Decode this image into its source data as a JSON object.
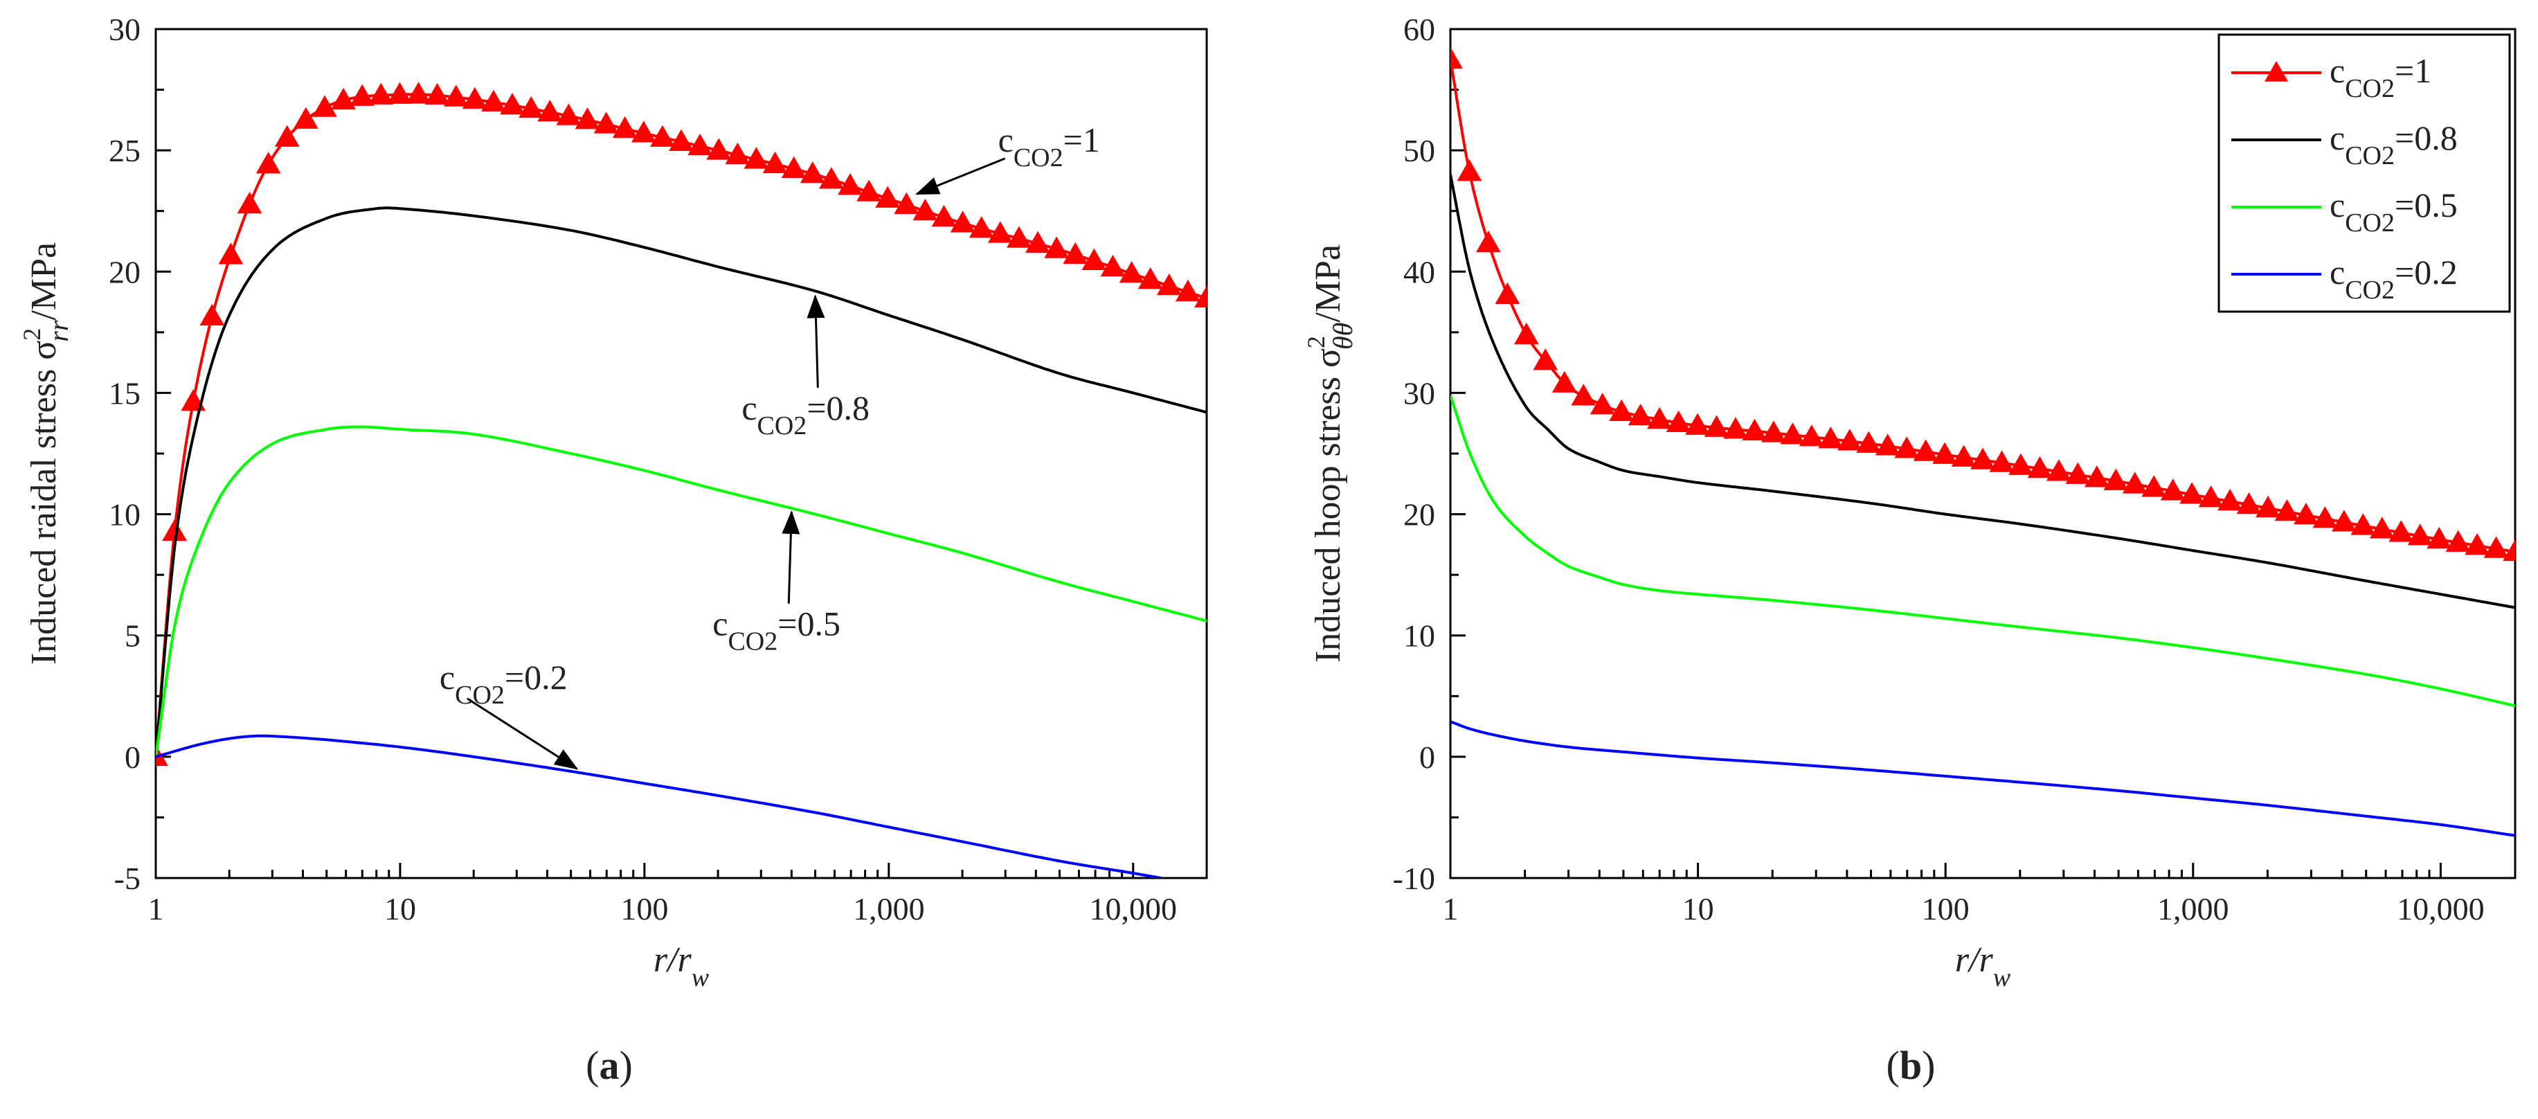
{
  "chart_data": [
    {
      "panel": "(a)",
      "panel_letter": "a",
      "type": "line",
      "title": "",
      "xlabel": "r/r_w",
      "ylabel": "Induced raidal stress σ²_rr/MPa",
      "xscale": "log",
      "xlim": [
        1,
        20000
      ],
      "ylim": [
        -5,
        30
      ],
      "xticks": [
        1,
        10,
        100,
        1000,
        10000
      ],
      "xtick_labels": [
        "1",
        "10",
        "100",
        "1,000",
        "10,000"
      ],
      "yticks": [
        -5,
        0,
        5,
        10,
        15,
        20,
        25,
        30
      ],
      "ytick_labels": [
        "-5",
        "0",
        "5",
        "10",
        "15",
        "20",
        "25",
        "30"
      ],
      "grid": false,
      "series": [
        {
          "name": "cCO2=1",
          "color": "#ff0000",
          "marker": "triangle",
          "x": [
            1,
            1.2,
            1.5,
            2,
            3,
            5,
            10,
            20,
            50,
            100,
            200,
            500,
            1000,
            2000,
            5000,
            10000,
            20000
          ],
          "y": [
            0,
            9.5,
            15.8,
            20.5,
            24.7,
            26.8,
            27.3,
            27.1,
            26.4,
            25.7,
            25.0,
            24.0,
            23.0,
            22.0,
            20.9,
            19.9,
            18.9
          ]
        },
        {
          "name": "cCO2=0.8",
          "color": "#000000",
          "marker": "none",
          "x": [
            1,
            1.2,
            1.5,
            2,
            3,
            5,
            8,
            10,
            20,
            50,
            100,
            200,
            500,
            1000,
            2000,
            5000,
            10000,
            20000
          ],
          "y": [
            0,
            8.8,
            14.2,
            18.2,
            20.9,
            22.2,
            22.6,
            22.6,
            22.3,
            21.7,
            21.0,
            20.2,
            19.2,
            18.2,
            17.2,
            15.8,
            15.0,
            14.2
          ]
        },
        {
          "name": "cCO2=0.5",
          "color": "#00ff00",
          "marker": "none",
          "x": [
            1,
            1.2,
            1.5,
            2,
            3,
            5,
            7,
            10,
            20,
            50,
            100,
            200,
            500,
            1000,
            2000,
            5000,
            10000,
            20000
          ],
          "y": [
            0,
            5.5,
            8.8,
            11.3,
            12.9,
            13.5,
            13.6,
            13.5,
            13.3,
            12.5,
            11.8,
            11.0,
            10.0,
            9.2,
            8.4,
            7.2,
            6.4,
            5.6
          ]
        },
        {
          "name": "cCO2=0.2",
          "color": "#0000ff",
          "marker": "none",
          "x": [
            1,
            1.5,
            2,
            2.5,
            3,
            5,
            10,
            20,
            50,
            100,
            200,
            500,
            1000,
            2000,
            5000,
            10000,
            13000
          ],
          "y": [
            0,
            0.5,
            0.75,
            0.85,
            0.85,
            0.7,
            0.4,
            0.0,
            -0.6,
            -1.1,
            -1.6,
            -2.3,
            -2.9,
            -3.5,
            -4.3,
            -4.8,
            -5.0
          ]
        }
      ],
      "annotations": [
        {
          "label_sub": "CO2",
          "label_val": "=1",
          "text_x": 2800,
          "text_y": 24.95,
          "arrow_to_x": 1300,
          "arrow_to_y": 23.2
        },
        {
          "label_sub": "CO2",
          "label_val": "=0.8",
          "text_x": 250,
          "text_y": 13.9,
          "arrow_to_x": 500,
          "arrow_to_y": 19.0
        },
        {
          "label_sub": "CO2",
          "label_val": "=0.5",
          "text_x": 190,
          "text_y": 5.0,
          "arrow_to_x": 400,
          "arrow_to_y": 10.1
        },
        {
          "label_sub": "CO2",
          "label_val": "=0.2",
          "text_x": 14.5,
          "text_y": 2.8,
          "arrow_to_x": 53,
          "arrow_to_y": -0.5
        }
      ],
      "legend": null
    },
    {
      "panel": "(b)",
      "panel_letter": "b",
      "type": "line",
      "title": "",
      "xlabel": "r/r_w",
      "ylabel": "Induced hoop stress σ²_θθ/MPa",
      "xscale": "log",
      "xlim": [
        1,
        20000
      ],
      "ylim": [
        -10,
        60
      ],
      "xticks": [
        1,
        10,
        100,
        1000,
        10000
      ],
      "xtick_labels": [
        "1",
        "10",
        "100",
        "1,000",
        "10,000"
      ],
      "yticks": [
        -10,
        0,
        10,
        20,
        30,
        40,
        50,
        60
      ],
      "ytick_labels": [
        "-10",
        "0",
        "10",
        "20",
        "30",
        "40",
        "50",
        "60"
      ],
      "grid": false,
      "series": [
        {
          "name": "cCO2=1",
          "color": "#ff0000",
          "marker": "triangle",
          "x": [
            1,
            1.2,
            1.5,
            2,
            2.5,
            3,
            4,
            5,
            7,
            10,
            20,
            50,
            100,
            200,
            500,
            1000,
            2000,
            5000,
            10000,
            20000
          ],
          "y": [
            57.5,
            48.0,
            41.0,
            35.0,
            32.3,
            30.5,
            29.1,
            28.4,
            27.8,
            27.3,
            26.7,
            25.8,
            24.9,
            24.0,
            22.7,
            21.6,
            20.5,
            19.0,
            17.9,
            16.9
          ]
        },
        {
          "name": "cCO2=0.8",
          "color": "#000000",
          "marker": "none",
          "x": [
            1,
            1.2,
            1.5,
            2,
            2.5,
            3,
            4,
            5,
            7,
            10,
            20,
            50,
            100,
            200,
            500,
            1000,
            2000,
            5000,
            10000,
            20000
          ],
          "y": [
            48.0,
            40.0,
            34.0,
            29.0,
            26.9,
            25.4,
            24.3,
            23.6,
            23.1,
            22.6,
            21.9,
            20.9,
            20.0,
            19.2,
            18.0,
            17.0,
            16.0,
            14.5,
            13.4,
            12.3
          ]
        },
        {
          "name": "cCO2=0.5",
          "color": "#00ff00",
          "marker": "none",
          "x": [
            1,
            1.2,
            1.5,
            2,
            2.5,
            3,
            4,
            5,
            7,
            10,
            20,
            50,
            100,
            200,
            500,
            1000,
            2000,
            5000,
            10000,
            20000
          ],
          "y": [
            29.8,
            25.0,
            21.0,
            18.2,
            16.7,
            15.7,
            14.8,
            14.2,
            13.7,
            13.4,
            12.9,
            12.1,
            11.4,
            10.7,
            9.8,
            9.0,
            8.1,
            6.8,
            5.6,
            4.2
          ]
        },
        {
          "name": "cCO2=0.2",
          "color": "#0000ff",
          "marker": "none",
          "x": [
            1,
            1.2,
            1.5,
            2,
            3,
            5,
            10,
            20,
            50,
            100,
            200,
            500,
            1000,
            2000,
            5000,
            10000,
            20000
          ],
          "y": [
            2.9,
            2.3,
            1.8,
            1.3,
            0.8,
            0.4,
            -0.1,
            -0.5,
            -1.1,
            -1.6,
            -2.1,
            -2.8,
            -3.4,
            -4.0,
            -4.9,
            -5.6,
            -6.5
          ]
        }
      ],
      "annotations": [],
      "legend": {
        "position": "top-right",
        "entries": [
          {
            "label_sub": "CO2",
            "label_val": "=1",
            "color": "#ff0000",
            "marker": "triangle"
          },
          {
            "label_sub": "CO2",
            "label_val": "=0.8",
            "color": "#000000",
            "marker": "none"
          },
          {
            "label_sub": "CO2",
            "label_val": "=0.5",
            "color": "#00ff00",
            "marker": "none"
          },
          {
            "label_sub": "CO2",
            "label_val": "=0.2",
            "color": "#0000ff",
            "marker": "none"
          }
        ]
      }
    }
  ]
}
